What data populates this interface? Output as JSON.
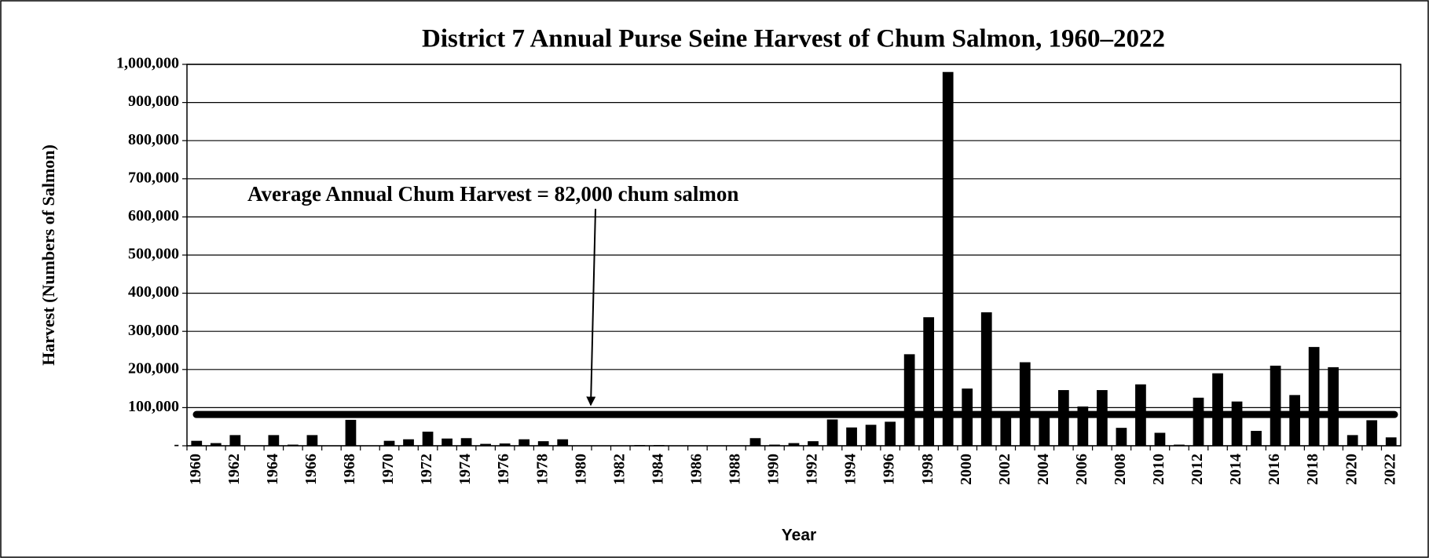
{
  "chart_data": {
    "type": "bar",
    "title": "District 7 Annual Purse Seine Harvest of Chum Salmon, 1960–2022",
    "x_label": "Year",
    "y_label": "Harvest (Numbers of Salmon)",
    "categories": [
      "1960",
      null,
      "1962",
      null,
      "1964",
      null,
      "1966",
      null,
      "1968",
      null,
      "1970",
      null,
      "1972",
      null,
      "1974",
      null,
      "1976",
      null,
      "1978",
      null,
      "1980",
      null,
      "1982",
      null,
      "1984",
      null,
      "1986",
      null,
      "1988",
      null,
      "1990",
      null,
      "1992",
      null,
      "1994",
      null,
      "1996",
      null,
      "1998",
      null,
      "2000",
      null,
      "2002",
      null,
      "2004",
      null,
      "2006",
      null,
      "2008",
      null,
      "2010",
      null,
      "2012",
      null,
      "2014",
      null,
      "2016",
      null,
      "2018",
      null,
      "2020",
      null,
      "2022"
    ],
    "values": [
      13000,
      7000,
      28000,
      0,
      28000,
      3000,
      28000,
      0,
      68000,
      0,
      13000,
      17000,
      37000,
      19000,
      20000,
      5000,
      6000,
      17000,
      12000,
      17000,
      0,
      0,
      0,
      2000,
      2000,
      0,
      0,
      0,
      0,
      20000,
      3000,
      7000,
      12000,
      69000,
      48000,
      55000,
      63000,
      240000,
      337000,
      980000,
      150000,
      350000,
      85000,
      219000,
      85000,
      146000,
      103000,
      146000,
      47000,
      161000,
      34000,
      3000,
      126000,
      190000,
      116000,
      39000,
      210000,
      133000,
      259000,
      206000,
      28000,
      67000,
      22000
    ],
    "color": "#000000",
    "ylim": [
      0,
      1000000
    ],
    "yticks": [
      {
        "value": 0,
        "label": "-"
      },
      {
        "value": 100000,
        "label": "100,000"
      },
      {
        "value": 200000,
        "label": "200,000"
      },
      {
        "value": 300000,
        "label": "300,000"
      },
      {
        "value": 400000,
        "label": "400,000"
      },
      {
        "value": 500000,
        "label": "500,000"
      },
      {
        "value": 600000,
        "label": "600,000"
      },
      {
        "value": 700000,
        "label": "700,000"
      },
      {
        "value": 800000,
        "label": "800,000"
      },
      {
        "value": 900000,
        "label": "900,000"
      },
      {
        "value": 1000000,
        "label": "1,000,000"
      }
    ],
    "grid": true,
    "reference_line": {
      "value": 82000,
      "label": "Average Annual Chum Harvest = 82,000 chum salmon"
    }
  }
}
